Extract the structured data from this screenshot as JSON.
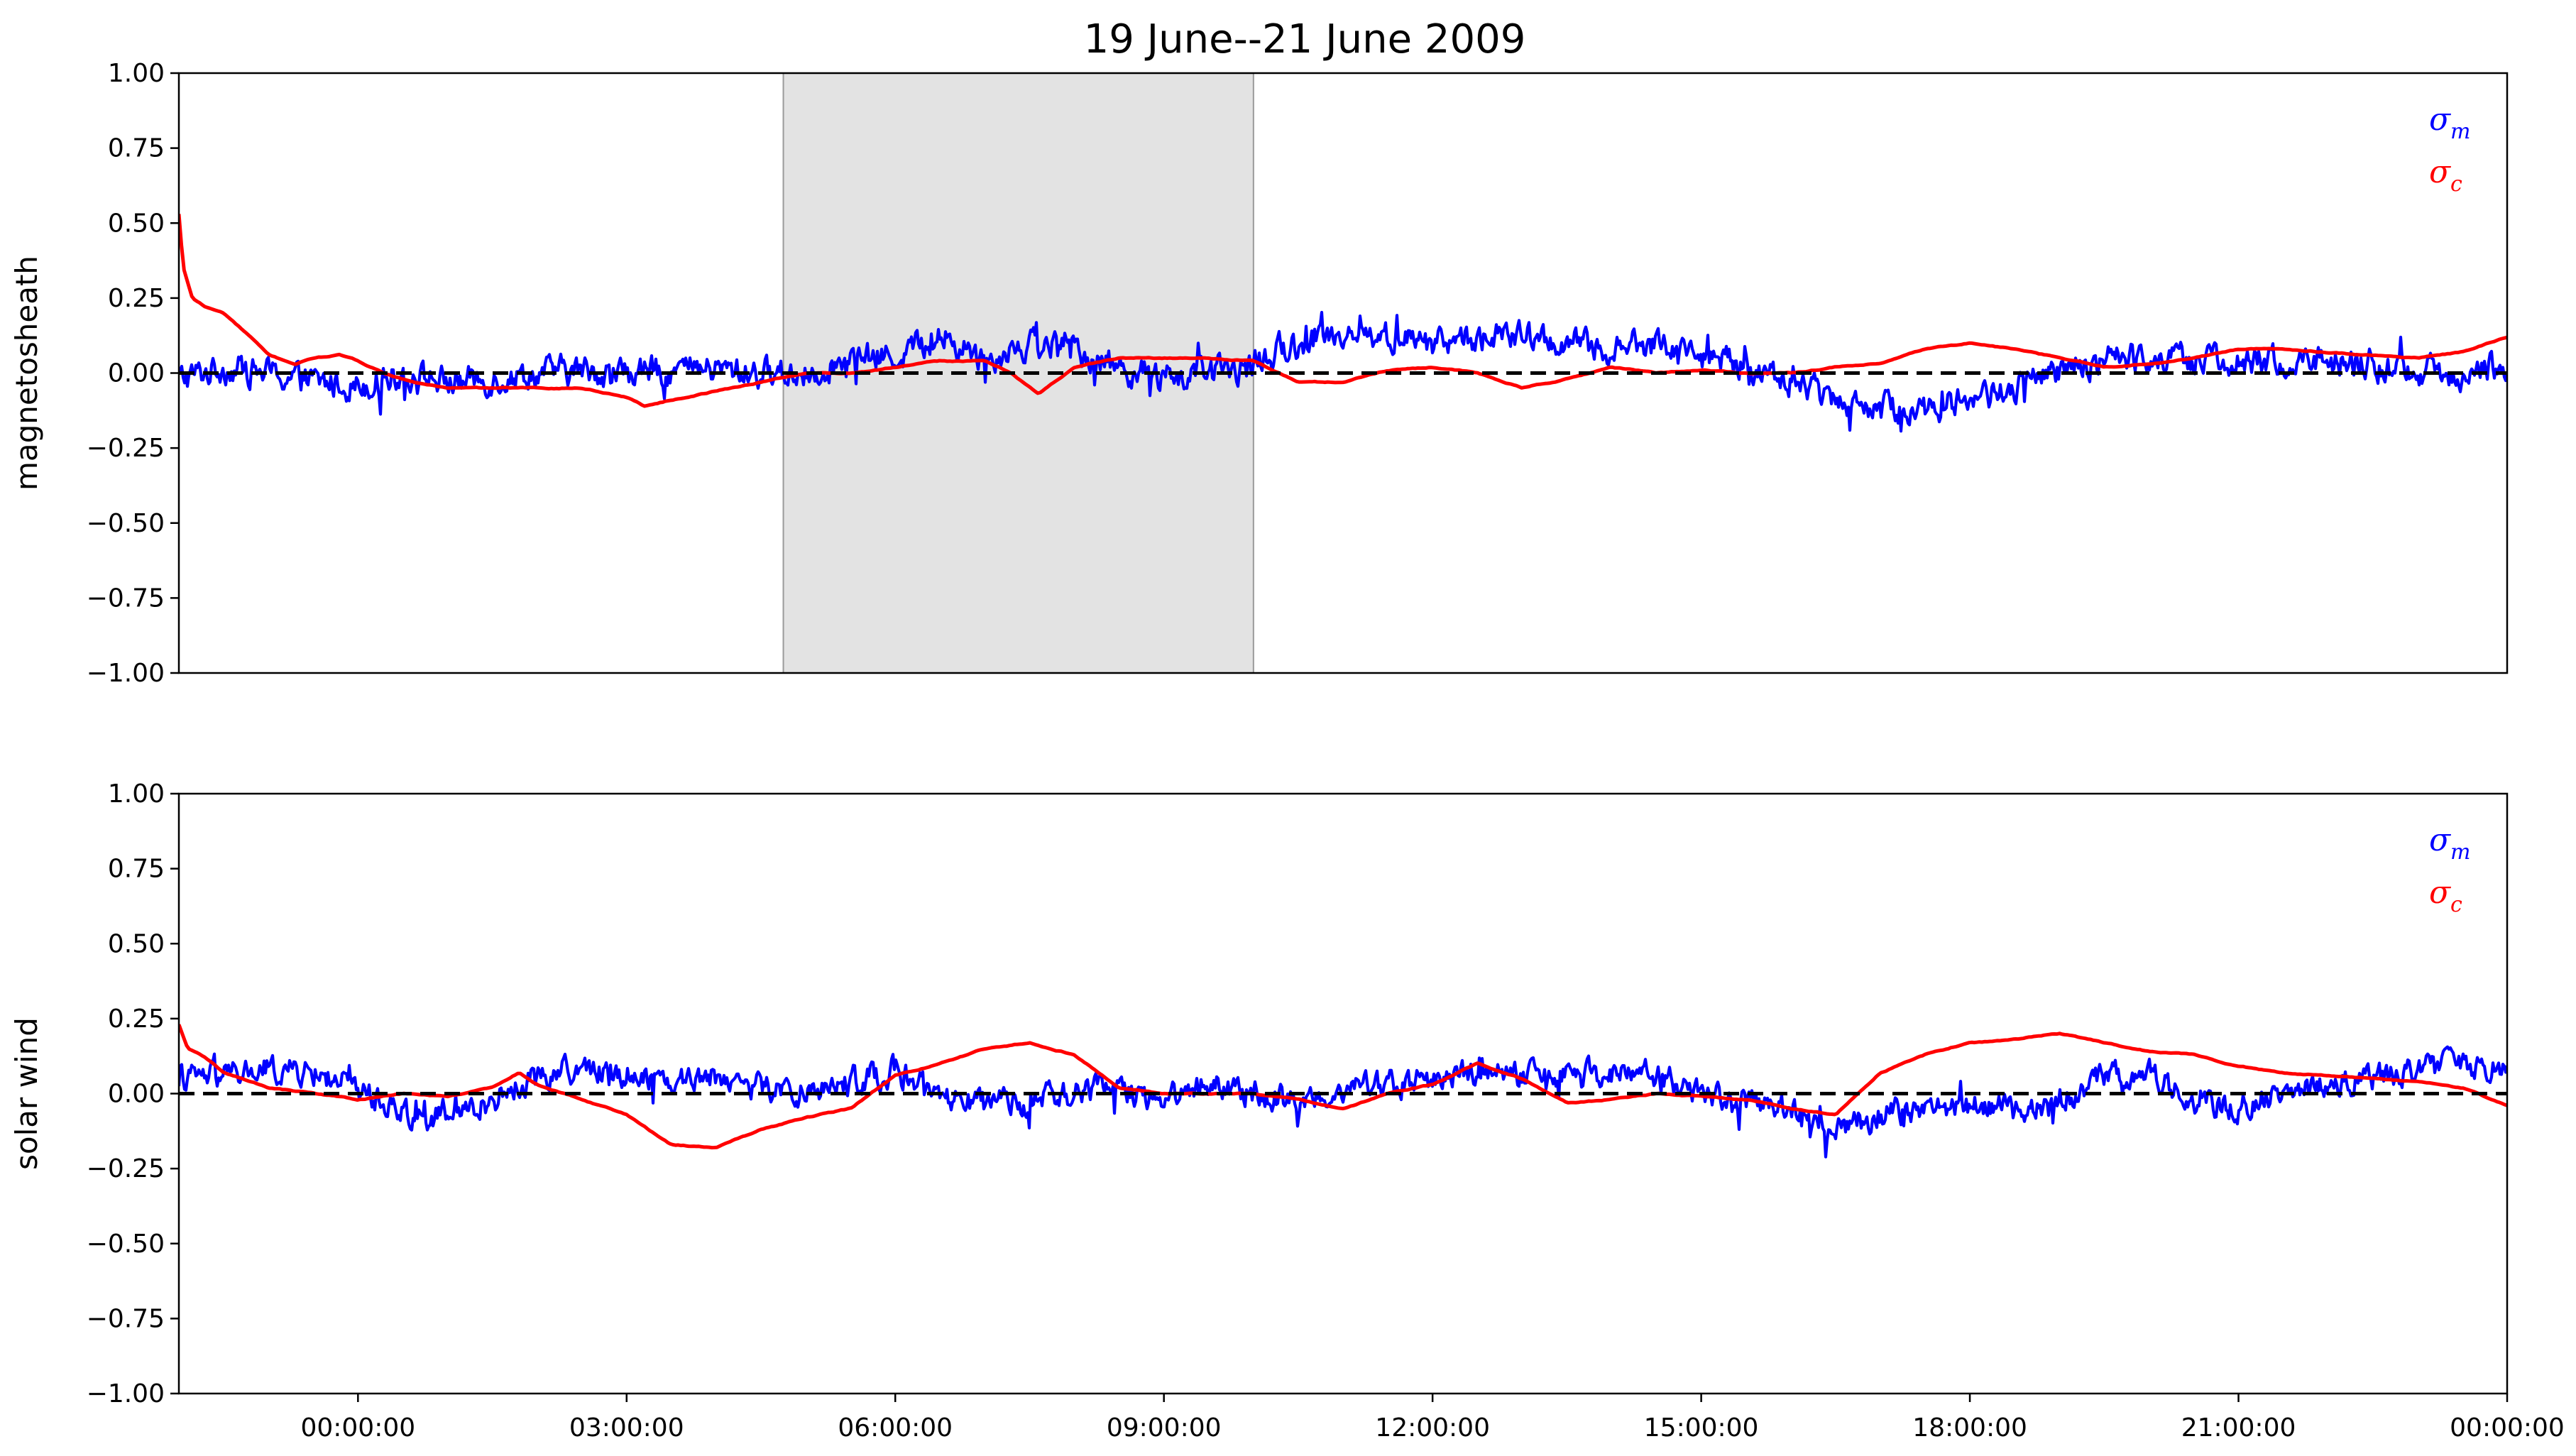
{
  "title": "19 June--21 June 2009",
  "colors": {
    "sigma_m": "#0000ff",
    "sigma_c": "#ff0000",
    "zero_line": "#000000",
    "shade": "#e3e3e3"
  },
  "chart_data": [
    {
      "type": "line",
      "panel": "top",
      "ylabel": "magnetosheath",
      "ylim": [
        -1.0,
        1.0
      ],
      "yticks": [
        "1.00",
        "0.75",
        "0.50",
        "0.25",
        "0.00",
        "−0.25",
        "−0.50",
        "−0.75",
        "−1.00"
      ],
      "xlim_hours": [
        -2.0,
        24.0
      ],
      "xticks": [],
      "grid": false,
      "legend_placement": "top-right",
      "legend": [
        {
          "sym": "σ",
          "sub": "m"
        },
        {
          "sym": "σ",
          "sub": "c"
        }
      ],
      "shaded_interval_hours": [
        4.75,
        10.0
      ],
      "reference_line": 0.0,
      "series": [
        {
          "name": "σm",
          "color": "#0000ff",
          "noisy": true,
          "noise_amp": 0.055,
          "x_hours": [
            -2.0,
            -1.5,
            -1.0,
            -0.5,
            0.0,
            0.5,
            1.0,
            1.5,
            2.0,
            2.5,
            3.0,
            3.5,
            4.0,
            4.5,
            5.0,
            5.5,
            6.0,
            6.5,
            7.0,
            7.5,
            8.0,
            8.5,
            9.0,
            9.5,
            10.0,
            10.5,
            11.0,
            11.5,
            12.0,
            12.5,
            13.0,
            13.5,
            14.0,
            14.5,
            15.0,
            15.5,
            16.0,
            16.5,
            17.0,
            17.5,
            18.0,
            18.5,
            19.0,
            19.5,
            20.0,
            20.5,
            21.0,
            21.5,
            22.0,
            22.5,
            23.0,
            23.5,
            24.0
          ],
          "values": [
            -0.02,
            0.02,
            0.0,
            -0.03,
            -0.04,
            0.0,
            -0.03,
            -0.02,
            0.0,
            0.01,
            0.0,
            0.01,
            0.01,
            0.0,
            0.0,
            0.04,
            0.06,
            0.12,
            0.05,
            0.1,
            0.08,
            0.02,
            -0.02,
            0.0,
            0.02,
            0.1,
            0.14,
            0.12,
            0.1,
            0.12,
            0.12,
            0.1,
            0.08,
            0.1,
            0.06,
            0.02,
            -0.03,
            -0.08,
            -0.12,
            -0.12,
            -0.08,
            -0.05,
            0.0,
            0.04,
            0.06,
            0.05,
            0.03,
            0.04,
            0.04,
            0.03,
            0.0,
            0.0,
            0.03
          ]
        },
        {
          "name": "σc",
          "color": "#ff0000",
          "noisy": false,
          "x_hours": [
            -2.0,
            -1.95,
            -1.85,
            -1.7,
            -1.5,
            -1.2,
            -1.0,
            -0.7,
            -0.5,
            -0.2,
            0.0,
            0.3,
            0.6,
            1.0,
            1.5,
            2.0,
            2.5,
            3.0,
            3.2,
            3.5,
            4.0,
            4.5,
            5.0,
            5.5,
            6.0,
            6.5,
            7.0,
            7.3,
            7.6,
            8.0,
            8.5,
            9.0,
            9.5,
            10.0,
            10.5,
            11.0,
            11.5,
            12.0,
            12.5,
            13.0,
            13.5,
            14.0,
            14.5,
            15.0,
            15.5,
            16.0,
            16.5,
            17.0,
            17.5,
            18.0,
            18.5,
            19.0,
            19.5,
            20.0,
            20.5,
            21.0,
            21.5,
            22.0,
            22.5,
            23.0,
            23.5,
            23.8,
            24.0
          ],
          "values": [
            0.53,
            0.35,
            0.25,
            0.22,
            0.2,
            0.12,
            0.06,
            0.03,
            0.05,
            0.06,
            0.04,
            0.0,
            -0.03,
            -0.05,
            -0.05,
            -0.05,
            -0.05,
            -0.08,
            -0.11,
            -0.09,
            -0.06,
            -0.03,
            0.0,
            0.0,
            0.02,
            0.04,
            0.04,
            0.0,
            -0.07,
            0.02,
            0.05,
            0.05,
            0.05,
            0.04,
            -0.03,
            -0.03,
            0.01,
            0.02,
            0.0,
            -0.05,
            -0.02,
            0.02,
            0.0,
            0.01,
            0.0,
            0.0,
            0.02,
            0.03,
            0.08,
            0.1,
            0.08,
            0.05,
            0.02,
            0.03,
            0.05,
            0.08,
            0.08,
            0.07,
            0.06,
            0.05,
            0.07,
            0.1,
            0.12
          ]
        }
      ]
    },
    {
      "type": "line",
      "panel": "bottom",
      "ylabel": "solar wind",
      "ylim": [
        -1.0,
        1.0
      ],
      "yticks": [
        "1.00",
        "0.75",
        "0.50",
        "0.25",
        "0.00",
        "−0.25",
        "−0.50",
        "−0.75",
        "−1.00"
      ],
      "xlim_hours": [
        -2.0,
        24.0
      ],
      "xticks": [
        {
          "hour": 0,
          "label": "00:00:00"
        },
        {
          "hour": 3,
          "label": "03:00:00"
        },
        {
          "hour": 6,
          "label": "06:00:00"
        },
        {
          "hour": 9,
          "label": "09:00:00"
        },
        {
          "hour": 12,
          "label": "12:00:00"
        },
        {
          "hour": 15,
          "label": "15:00:00"
        },
        {
          "hour": 18,
          "label": "18:00:00"
        },
        {
          "hour": 21,
          "label": "21:00:00"
        },
        {
          "hour": 24,
          "label": "00:00:00"
        }
      ],
      "grid": false,
      "legend_placement": "top-right",
      "legend": [
        {
          "sym": "σ",
          "sub": "m"
        },
        {
          "sym": "σ",
          "sub": "c"
        }
      ],
      "reference_line": 0.0,
      "series": [
        {
          "name": "σm",
          "color": "#0000ff",
          "noisy": true,
          "noise_amp": 0.05,
          "x_hours": [
            -2.0,
            -1.5,
            -1.0,
            -0.5,
            0.0,
            0.5,
            1.0,
            1.5,
            2.0,
            2.5,
            3.0,
            3.5,
            4.0,
            4.5,
            5.0,
            5.5,
            6.0,
            6.5,
            7.0,
            7.5,
            8.0,
            8.5,
            9.0,
            9.5,
            10.0,
            10.5,
            11.0,
            11.5,
            12.0,
            12.5,
            13.0,
            13.5,
            14.0,
            14.5,
            15.0,
            15.5,
            16.0,
            16.5,
            17.0,
            17.5,
            18.0,
            18.5,
            19.0,
            19.5,
            20.0,
            20.5,
            21.0,
            21.5,
            22.0,
            22.5,
            23.0,
            23.5,
            24.0
          ],
          "values": [
            0.05,
            0.06,
            0.08,
            0.07,
            0.02,
            -0.06,
            -0.08,
            -0.02,
            0.06,
            0.08,
            0.07,
            0.05,
            0.06,
            0.02,
            0.0,
            0.04,
            0.08,
            -0.02,
            -0.04,
            -0.03,
            0.0,
            0.02,
            -0.02,
            0.04,
            0.0,
            -0.03,
            0.02,
            0.03,
            0.05,
            0.07,
            0.06,
            0.05,
            0.07,
            0.06,
            0.0,
            -0.02,
            -0.06,
            -0.12,
            -0.07,
            -0.05,
            -0.04,
            -0.06,
            -0.02,
            0.06,
            0.06,
            -0.02,
            -0.04,
            0.0,
            0.03,
            0.05,
            0.08,
            0.09,
            0.1
          ]
        },
        {
          "name": "σc",
          "color": "#ff0000",
          "noisy": false,
          "x_hours": [
            -2.0,
            -1.9,
            -1.7,
            -1.5,
            -1.2,
            -1.0,
            -0.5,
            0.0,
            0.5,
            1.0,
            1.5,
            1.8,
            2.0,
            2.5,
            3.0,
            3.5,
            4.0,
            4.5,
            5.0,
            5.5,
            6.0,
            6.5,
            7.0,
            7.5,
            8.0,
            8.5,
            9.0,
            9.5,
            10.0,
            10.5,
            11.0,
            11.5,
            12.0,
            12.5,
            13.0,
            13.5,
            14.0,
            14.5,
            15.0,
            15.5,
            16.0,
            16.5,
            17.0,
            17.5,
            18.0,
            18.5,
            19.0,
            19.5,
            20.0,
            20.5,
            21.0,
            21.5,
            22.0,
            22.5,
            23.0,
            23.5,
            24.0
          ],
          "values": [
            0.23,
            0.15,
            0.12,
            0.07,
            0.04,
            0.02,
            0.0,
            -0.02,
            0.0,
            -0.01,
            0.02,
            0.07,
            0.03,
            -0.02,
            -0.07,
            -0.17,
            -0.18,
            -0.12,
            -0.08,
            -0.05,
            0.06,
            0.1,
            0.15,
            0.17,
            0.13,
            0.02,
            0.0,
            0.0,
            0.0,
            -0.02,
            -0.05,
            0.0,
            0.03,
            0.1,
            0.05,
            -0.03,
            -0.02,
            0.0,
            -0.01,
            -0.02,
            -0.05,
            -0.07,
            0.07,
            0.13,
            0.17,
            0.18,
            0.2,
            0.17,
            0.14,
            0.13,
            0.09,
            0.07,
            0.06,
            0.05,
            0.04,
            0.02,
            -0.04
          ]
        }
      ]
    }
  ]
}
